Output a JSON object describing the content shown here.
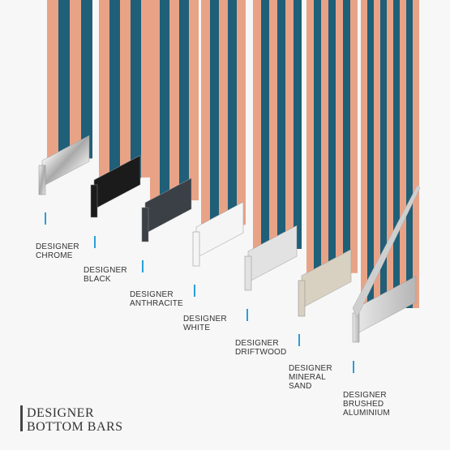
{
  "title": [
    "DESIGNER",
    "BOTTOM BARS"
  ],
  "labels": [
    [
      "DESIGNER",
      "CHROME"
    ],
    [
      "DESIGNER",
      "BLACK"
    ],
    [
      "DESIGNER",
      "ANTHRACITE"
    ],
    [
      "DESIGNER",
      "WHITE"
    ],
    [
      "DESIGNER",
      "DRIFTWOOD"
    ],
    [
      "DESIGNER",
      "MINERAL",
      "SAND"
    ],
    [
      "DESIGNER",
      "BRUSHED",
      "ALUMINIUM"
    ]
  ]
}
